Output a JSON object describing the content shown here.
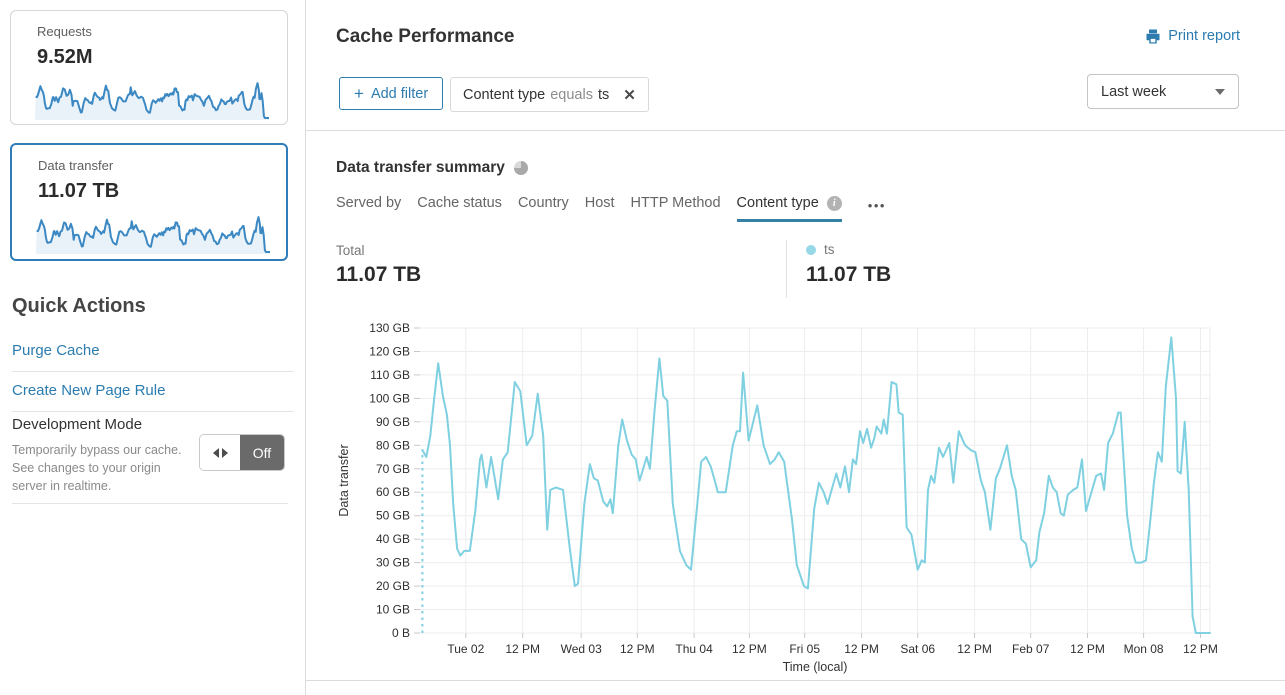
{
  "colors": {
    "accent_blue": "#2c7cb0",
    "selected_card_border": "#2e7db8",
    "chart_line": "#7fd0e0",
    "legend_dot": "#97d8e6",
    "spark_line": "#3b88c3",
    "spark_fill": "#e9f2f9",
    "tab_underline": "#3581a3",
    "grid_line": "#ededed",
    "toggle_off_bg": "#6a6a6a"
  },
  "icons": {
    "plus": "+",
    "close": "✕",
    "overflow": "•••",
    "info": "i",
    "printer": "printer-icon",
    "caret": "caret-down-icon",
    "pie": "pie-chart-icon",
    "toggle_arrows": "left-right-arrows-icon"
  },
  "sidebar": {
    "cards": [
      {
        "label": "Requests",
        "value": "9.52M",
        "selected": false
      },
      {
        "label": "Data transfer",
        "value": "11.07 TB",
        "selected": true
      }
    ],
    "quick_actions": {
      "title": "Quick Actions",
      "links": [
        "Purge Cache",
        "Create New Page Rule"
      ],
      "dev_mode": {
        "title": "Development Mode",
        "description": "Temporarily bypass our cache. See changes to your origin server in realtime.",
        "state_label": "Off"
      }
    }
  },
  "header": {
    "title": "Cache Performance",
    "print_label": "Print report"
  },
  "filters": {
    "add_label": "Add filter",
    "chip": {
      "field": "Content type",
      "operator": "equals",
      "value": "ts"
    },
    "time_range": "Last week"
  },
  "summary": {
    "title": "Data transfer summary",
    "tabs": [
      {
        "label": "Served by",
        "active": false,
        "info": false
      },
      {
        "label": "Cache status",
        "active": false,
        "info": false
      },
      {
        "label": "Country",
        "active": false,
        "info": false
      },
      {
        "label": "Host",
        "active": false,
        "info": false
      },
      {
        "label": "HTTP Method",
        "active": false,
        "info": false
      },
      {
        "label": "Content type",
        "active": true,
        "info": true
      }
    ],
    "total_label": "Total",
    "total_value": "11.07 TB",
    "legend": {
      "name": "ts",
      "value": "11.07 TB"
    }
  },
  "chart_data": {
    "type": "line",
    "title": "Data transfer summary",
    "xlabel": "Time (local)",
    "ylabel": "Data transfer",
    "unit": "GB",
    "ylim": [
      0,
      130
    ],
    "grid": true,
    "start_dashed_drop": true,
    "y_ticks": [
      {
        "label": "130 GB",
        "value": 130
      },
      {
        "label": "120 GB",
        "value": 120
      },
      {
        "label": "110 GB",
        "value": 110
      },
      {
        "label": "100 GB",
        "value": 100
      },
      {
        "label": "90 GB",
        "value": 90
      },
      {
        "label": "80 GB",
        "value": 80
      },
      {
        "label": "70 GB",
        "value": 70
      },
      {
        "label": "60 GB",
        "value": 60
      },
      {
        "label": "50 GB",
        "value": 50
      },
      {
        "label": "40 GB",
        "value": 40
      },
      {
        "label": "30 GB",
        "value": 30
      },
      {
        "label": "20 GB",
        "value": 20
      },
      {
        "label": "10 GB",
        "value": 10
      },
      {
        "label": "0 B",
        "value": 0
      }
    ],
    "x_ticks": [
      {
        "label": "Tue 02",
        "pos": 0.058
      },
      {
        "label": "12 PM",
        "pos": 0.13
      },
      {
        "label": "Wed 03",
        "pos": 0.204
      },
      {
        "label": "12 PM",
        "pos": 0.275
      },
      {
        "label": "Thu 04",
        "pos": 0.347
      },
      {
        "label": "12 PM",
        "pos": 0.417
      },
      {
        "label": "Fri 05",
        "pos": 0.487
      },
      {
        "label": "12 PM",
        "pos": 0.559
      },
      {
        "label": "Sat 06",
        "pos": 0.63
      },
      {
        "label": "12 PM",
        "pos": 0.702
      },
      {
        "label": "Feb 07",
        "pos": 0.773
      },
      {
        "label": "12 PM",
        "pos": 0.845
      },
      {
        "label": "Mon 08",
        "pos": 0.916
      },
      {
        "label": "12 PM",
        "pos": 0.988
      }
    ],
    "series": [
      {
        "name": "ts",
        "color": "#7fd0e0",
        "points": [
          [
            0.003,
            78
          ],
          [
            0.008,
            75
          ],
          [
            0.013,
            84
          ],
          [
            0.018,
            100
          ],
          [
            0.023,
            115
          ],
          [
            0.029,
            101
          ],
          [
            0.034,
            93
          ],
          [
            0.038,
            80
          ],
          [
            0.042,
            55
          ],
          [
            0.047,
            36
          ],
          [
            0.051,
            33
          ],
          [
            0.056,
            35
          ],
          [
            0.063,
            35
          ],
          [
            0.07,
            52
          ],
          [
            0.076,
            74
          ],
          [
            0.078,
            76
          ],
          [
            0.084,
            62
          ],
          [
            0.09,
            75
          ],
          [
            0.094,
            67
          ],
          [
            0.099,
            57
          ],
          [
            0.105,
            74
          ],
          [
            0.111,
            77
          ],
          [
            0.12,
            107
          ],
          [
            0.127,
            103
          ],
          [
            0.135,
            80
          ],
          [
            0.142,
            84
          ],
          [
            0.149,
            102
          ],
          [
            0.156,
            84
          ],
          [
            0.161,
            44
          ],
          [
            0.165,
            61
          ],
          [
            0.172,
            62
          ],
          [
            0.181,
            61
          ],
          [
            0.19,
            35
          ],
          [
            0.196,
            20
          ],
          [
            0.2,
            21
          ],
          [
            0.208,
            55
          ],
          [
            0.215,
            72
          ],
          [
            0.22,
            66
          ],
          [
            0.225,
            65
          ],
          [
            0.232,
            56
          ],
          [
            0.237,
            54
          ],
          [
            0.241,
            57
          ],
          [
            0.244,
            51
          ],
          [
            0.251,
            80
          ],
          [
            0.256,
            91
          ],
          [
            0.262,
            82
          ],
          [
            0.268,
            76
          ],
          [
            0.273,
            74
          ],
          [
            0.278,
            65
          ],
          [
            0.287,
            75
          ],
          [
            0.291,
            70
          ],
          [
            0.297,
            95
          ],
          [
            0.303,
            117
          ],
          [
            0.308,
            101
          ],
          [
            0.313,
            99
          ],
          [
            0.32,
            55
          ],
          [
            0.329,
            35
          ],
          [
            0.337,
            29
          ],
          [
            0.343,
            27
          ],
          [
            0.351,
            55
          ],
          [
            0.356,
            73
          ],
          [
            0.362,
            75
          ],
          [
            0.368,
            71
          ],
          [
            0.373,
            65
          ],
          [
            0.377,
            60
          ],
          [
            0.387,
            60
          ],
          [
            0.396,
            80
          ],
          [
            0.401,
            86
          ],
          [
            0.405,
            86
          ],
          [
            0.409,
            111
          ],
          [
            0.416,
            82
          ],
          [
            0.427,
            97
          ],
          [
            0.435,
            80
          ],
          [
            0.443,
            72
          ],
          [
            0.449,
            74
          ],
          [
            0.454,
            77
          ],
          [
            0.461,
            73
          ],
          [
            0.471,
            48
          ],
          [
            0.477,
            29
          ],
          [
            0.486,
            20
          ],
          [
            0.491,
            19
          ],
          [
            0.499,
            53
          ],
          [
            0.505,
            64
          ],
          [
            0.511,
            60
          ],
          [
            0.516,
            55
          ],
          [
            0.527,
            68
          ],
          [
            0.532,
            62
          ],
          [
            0.538,
            71
          ],
          [
            0.543,
            60
          ],
          [
            0.548,
            74
          ],
          [
            0.552,
            72
          ],
          [
            0.557,
            86
          ],
          [
            0.561,
            81
          ],
          [
            0.566,
            87
          ],
          [
            0.571,
            79
          ],
          [
            0.575,
            83
          ],
          [
            0.578,
            88
          ],
          [
            0.584,
            85
          ],
          [
            0.587,
            91
          ],
          [
            0.591,
            85
          ],
          [
            0.597,
            107
          ],
          [
            0.603,
            106
          ],
          [
            0.606,
            94
          ],
          [
            0.611,
            93
          ],
          [
            0.616,
            45
          ],
          [
            0.622,
            42
          ],
          [
            0.63,
            27
          ],
          [
            0.635,
            31
          ],
          [
            0.639,
            30
          ],
          [
            0.643,
            61
          ],
          [
            0.647,
            67
          ],
          [
            0.651,
            64
          ],
          [
            0.657,
            79
          ],
          [
            0.662,
            75
          ],
          [
            0.67,
            81
          ],
          [
            0.675,
            64
          ],
          [
            0.682,
            86
          ],
          [
            0.69,
            80
          ],
          [
            0.697,
            78
          ],
          [
            0.703,
            77
          ],
          [
            0.71,
            65
          ],
          [
            0.715,
            60
          ],
          [
            0.722,
            44
          ],
          [
            0.729,
            66
          ],
          [
            0.734,
            70
          ],
          [
            0.743,
            80
          ],
          [
            0.749,
            67
          ],
          [
            0.754,
            61
          ],
          [
            0.761,
            40
          ],
          [
            0.767,
            38
          ],
          [
            0.773,
            28
          ],
          [
            0.78,
            31
          ],
          [
            0.784,
            43
          ],
          [
            0.79,
            51
          ],
          [
            0.796,
            67
          ],
          [
            0.801,
            62
          ],
          [
            0.806,
            60
          ],
          [
            0.811,
            51
          ],
          [
            0.815,
            50
          ],
          [
            0.82,
            59
          ],
          [
            0.827,
            61
          ],
          [
            0.832,
            62
          ],
          [
            0.838,
            74
          ],
          [
            0.843,
            52
          ],
          [
            0.856,
            67
          ],
          [
            0.862,
            68
          ],
          [
            0.866,
            61
          ],
          [
            0.871,
            81
          ],
          [
            0.877,
            85
          ],
          [
            0.884,
            94
          ],
          [
            0.887,
            94
          ],
          [
            0.895,
            50
          ],
          [
            0.901,
            36
          ],
          [
            0.906,
            30
          ],
          [
            0.913,
            30
          ],
          [
            0.919,
            31
          ],
          [
            0.925,
            50
          ],
          [
            0.929,
            64
          ],
          [
            0.934,
            77
          ],
          [
            0.939,
            73
          ],
          [
            0.944,
            105
          ],
          [
            0.951,
            126
          ],
          [
            0.957,
            100
          ],
          [
            0.959,
            69
          ],
          [
            0.963,
            68
          ],
          [
            0.968,
            90
          ],
          [
            0.973,
            61
          ],
          [
            0.978,
            7
          ],
          [
            0.982,
            0
          ],
          [
            1.0,
            0
          ]
        ]
      }
    ]
  }
}
